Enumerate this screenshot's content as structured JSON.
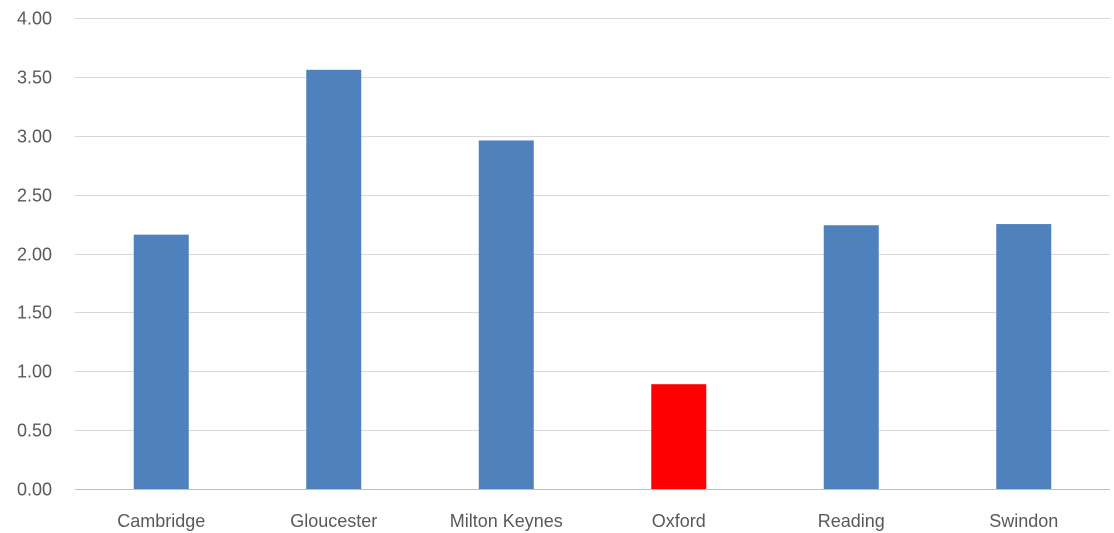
{
  "chart_data": {
    "type": "bar",
    "categories": [
      "Cambridge",
      "Gloucester",
      "Milton Keynes",
      "Oxford",
      "Reading",
      "Swindon"
    ],
    "values": [
      2.16,
      3.56,
      2.96,
      0.89,
      2.24,
      2.25
    ],
    "bar_colors": [
      "#4f81bd",
      "#4f81bd",
      "#4f81bd",
      "#ff0000",
      "#4f81bd",
      "#4f81bd"
    ],
    "ylim": [
      0,
      4
    ],
    "yticks": [
      0,
      0.5,
      1,
      1.5,
      2,
      2.5,
      3,
      3.5,
      4
    ],
    "ytick_labels": [
      "0.00",
      "0.50",
      "1.00",
      "1.50",
      "2.00",
      "2.50",
      "3.00",
      "3.50",
      "4.00"
    ],
    "grid": true,
    "legend": false
  }
}
